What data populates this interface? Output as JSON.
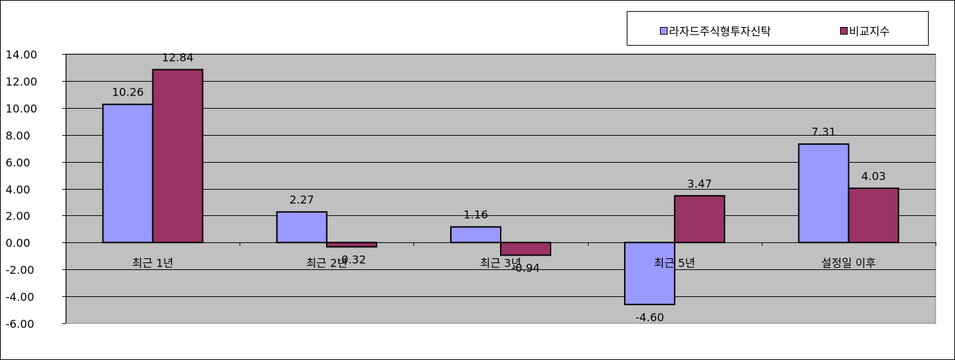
{
  "chart_data": {
    "type": "bar",
    "categories": [
      "최근 1년",
      "최근 2년",
      "최근 3년",
      "최근 5년",
      "설정일 이후"
    ],
    "series": [
      {
        "name": "라자드주식형투자신탁",
        "values": [
          10.26,
          2.27,
          1.16,
          -4.6,
          7.31
        ],
        "labels": [
          "10.26",
          "2.27",
          "1.16",
          "-4.60",
          "7.31"
        ],
        "color": "#9999ff"
      },
      {
        "name": "비교지수",
        "values": [
          12.84,
          -0.32,
          -0.94,
          3.47,
          4.03
        ],
        "labels": [
          "12.84",
          "-0.32",
          "-0.94",
          "3.47",
          "4.03"
        ],
        "color": "#993366"
      }
    ],
    "ylim": [
      -6,
      14
    ],
    "yticks": [
      -6,
      -4,
      -2,
      0,
      2,
      4,
      6,
      8,
      10,
      12,
      14
    ],
    "ytick_labels": [
      "-6.00",
      "-4.00",
      "-2.00",
      "0.00",
      "2.00",
      "4.00",
      "6.00",
      "8.00",
      "10.00",
      "12.00",
      "14.00"
    ],
    "grid": true,
    "legend_position": "top-right",
    "plot_background": "#c0c0c0",
    "title": "",
    "xlabel": "",
    "ylabel": ""
  }
}
